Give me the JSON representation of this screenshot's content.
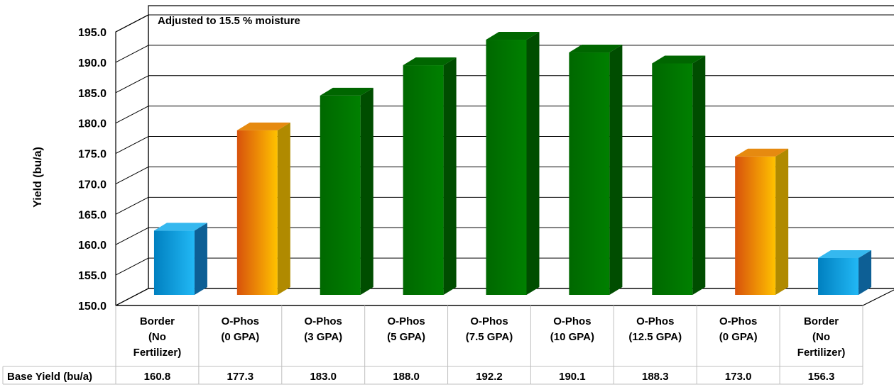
{
  "chart_data": {
    "type": "bar",
    "title": "",
    "annotation": "Adjusted to 15.5 % moisture",
    "ylabel": "Yield (bu/a)",
    "xlabel": "",
    "ylim": [
      150,
      195
    ],
    "yticks": [
      "150.0",
      "155.0",
      "160.0",
      "165.0",
      "170.0",
      "175.0",
      "180.0",
      "185.0",
      "190.0",
      "195.0"
    ],
    "categories": [
      [
        "Border",
        "(No",
        "Fertilizer)"
      ],
      [
        "O-Phos",
        "(0 GPA)"
      ],
      [
        "O-Phos",
        "(3 GPA)"
      ],
      [
        "O-Phos",
        "(5 GPA)"
      ],
      [
        "O-Phos",
        "(7.5 GPA)"
      ],
      [
        "O-Phos",
        "(10 GPA)"
      ],
      [
        "O-Phos",
        "(12.5 GPA)"
      ],
      [
        "O-Phos",
        "(0 GPA)"
      ],
      [
        "Border",
        "(No",
        "Fertilizer)"
      ]
    ],
    "values": [
      160.8,
      177.3,
      183.0,
      188.0,
      192.2,
      190.1,
      188.3,
      173.0,
      156.3
    ],
    "bar_colors": [
      "blue",
      "orange",
      "green",
      "green",
      "green",
      "green",
      "green",
      "orange",
      "blue"
    ],
    "grid": true,
    "legend": "none",
    "data_table": {
      "row_label": "Base Yield (bu/a)",
      "values": [
        "160.8",
        "177.3",
        "183.0",
        "188.0",
        "192.2",
        "190.1",
        "188.3",
        "173.0",
        "156.3"
      ]
    },
    "colors": {
      "blue": [
        "#0080c0",
        "#20b4f2",
        "#0d5f95",
        "#35b8ef"
      ],
      "orange": [
        "#d8500d",
        "#ffbf00",
        "#b08a00",
        "#e68a10"
      ],
      "green": [
        "#006400",
        "#007a00",
        "#004d00",
        "#006600"
      ]
    }
  }
}
